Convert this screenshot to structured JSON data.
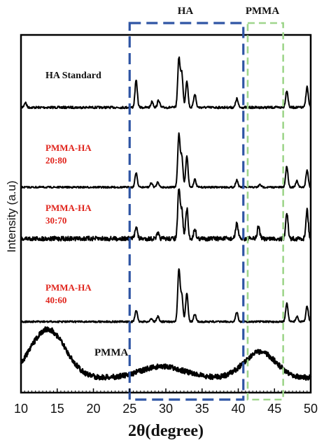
{
  "chart_data": {
    "type": "line",
    "xlabel": "2θ(degree)",
    "ylabel": "Intensity (a.u)",
    "xlim": [
      10,
      50
    ],
    "x_ticks": [
      "10",
      "15",
      "20",
      "25",
      "30",
      "35",
      "40",
      "45",
      "50"
    ],
    "grid": false,
    "regions": [
      {
        "name": "HA",
        "x_range": [
          25,
          40.7
        ],
        "color": "#2f55a4",
        "style": "dashed"
      },
      {
        "name": "PMMA",
        "x_range": [
          41.3,
          46.2
        ],
        "color": "#9fd68c",
        "style": "dashed"
      }
    ],
    "series": [
      {
        "name": "HA Standard",
        "name_lines": [
          "HA Standard"
        ],
        "label_color": "#111111",
        "baseline": 0.16,
        "peaks": [
          [
            10.6,
            0.1
          ],
          [
            25.9,
            0.55
          ],
          [
            28.1,
            0.12
          ],
          [
            29.0,
            0.15
          ],
          [
            31.8,
            1.0
          ],
          [
            32.2,
            0.7
          ],
          [
            32.9,
            0.55
          ],
          [
            34.0,
            0.28
          ],
          [
            39.8,
            0.18
          ],
          [
            46.7,
            0.35
          ],
          [
            49.5,
            0.42
          ]
        ]
      },
      {
        "name": "PMMA-HA 20:80",
        "name_lines": [
          "PMMA-HA",
          "20:80"
        ],
        "label_color": "#e0231b",
        "baseline": 0.0,
        "peaks": [
          [
            25.9,
            0.28
          ],
          [
            28.0,
            0.08
          ],
          [
            28.9,
            0.1
          ],
          [
            31.8,
            1.0
          ],
          [
            32.2,
            0.58
          ],
          [
            32.9,
            0.6
          ],
          [
            34.0,
            0.15
          ],
          [
            39.8,
            0.14
          ],
          [
            43.0,
            0.05
          ],
          [
            46.7,
            0.4
          ],
          [
            48.1,
            0.12
          ],
          [
            49.5,
            0.33
          ]
        ]
      },
      {
        "name": "PMMA-HA 30:70",
        "name_lines": [
          "PMMA-HA",
          "30:70"
        ],
        "label_color": "#e0231b",
        "baseline": 0.12,
        "peaks": [
          [
            25.9,
            0.26
          ],
          [
            28.9,
            0.1
          ],
          [
            31.8,
            1.0
          ],
          [
            32.2,
            0.58
          ],
          [
            32.9,
            0.62
          ],
          [
            34.0,
            0.2
          ],
          [
            39.8,
            0.32
          ],
          [
            42.8,
            0.26
          ],
          [
            46.7,
            0.55
          ],
          [
            49.5,
            0.6
          ]
        ]
      },
      {
        "name": "PMMA-HA 40:60",
        "name_lines": [
          "PMMA-HA",
          "40:60"
        ],
        "label_color": "#e0231b",
        "baseline": 0.02,
        "peaks": [
          [
            25.9,
            0.22
          ],
          [
            28.0,
            0.06
          ],
          [
            28.9,
            0.1
          ],
          [
            31.8,
            1.0
          ],
          [
            32.2,
            0.5
          ],
          [
            32.9,
            0.55
          ],
          [
            34.0,
            0.14
          ],
          [
            39.8,
            0.18
          ],
          [
            46.7,
            0.35
          ],
          [
            48.1,
            0.1
          ],
          [
            49.5,
            0.3
          ]
        ]
      },
      {
        "name": "PMMA",
        "name_lines": [
          "PMMA"
        ],
        "label_color": "#111111",
        "baseline": 0.05,
        "humps": [
          [
            13.7,
            0.85,
            2.4
          ],
          [
            29.5,
            0.2,
            3.0
          ],
          [
            43.0,
            0.45,
            2.2
          ]
        ]
      }
    ]
  }
}
